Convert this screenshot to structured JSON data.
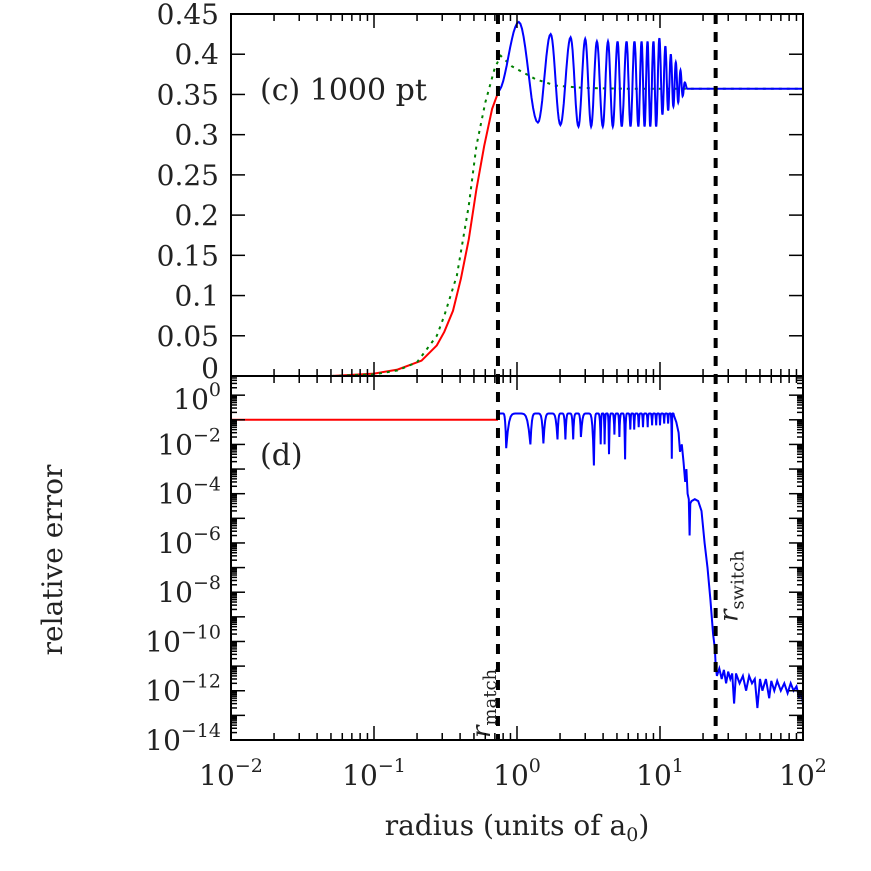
{
  "chart_data": [
    {
      "type": "line",
      "panel_label": "(c) 1000 pt",
      "xscale": "log",
      "xlim": [
        0.01,
        100
      ],
      "ylim": [
        0,
        0.45
      ],
      "yticks": [
        "0",
        "0.05",
        "0.1",
        "0.15",
        "0.2",
        "0.25",
        "0.3",
        "0.35",
        "0.4",
        "0.45"
      ],
      "grid": false,
      "series": [
        {
          "color": "#ff0000",
          "style": "solid",
          "points": [
            [
              0.01,
              0
            ],
            [
              0.05,
              0
            ],
            [
              0.1,
              0.003
            ],
            [
              0.146,
              0.008
            ],
            [
              0.215,
              0.019
            ],
            [
              0.275,
              0.038
            ],
            [
              0.31,
              0.055
            ],
            [
              0.357,
              0.081
            ],
            [
              0.405,
              0.121
            ],
            [
              0.46,
              0.17
            ],
            [
              0.52,
              0.232
            ],
            [
              0.59,
              0.286
            ],
            [
              0.67,
              0.332
            ],
            [
              0.736,
              0.352
            ]
          ]
        },
        {
          "color": "#008000",
          "style": "dotted",
          "points": [
            [
              0.05,
              0
            ],
            [
              0.1,
              0.002
            ],
            [
              0.146,
              0.007
            ],
            [
              0.2,
              0.017
            ],
            [
              0.275,
              0.05
            ],
            [
              0.31,
              0.075
            ],
            [
              0.38,
              0.125
            ],
            [
              0.46,
              0.212
            ],
            [
              0.52,
              0.286
            ],
            [
              0.6,
              0.34
            ],
            [
              0.7,
              0.383
            ],
            [
              0.77,
              0.398
            ],
            [
              0.92,
              0.385
            ],
            [
              1.35,
              0.369
            ],
            [
              1.86,
              0.361
            ],
            [
              3,
              0.358
            ],
            [
              6,
              0.357
            ],
            [
              100,
              0.357
            ]
          ]
        },
        {
          "color": "#0000ff",
          "style": "solid",
          "extrema": [
            [
              0.736,
              0.354
            ],
            [
              1.03,
              0.44
            ],
            [
              1.4,
              0.315
            ],
            [
              1.72,
              0.425
            ],
            [
              2.01,
              0.312
            ],
            [
              2.37,
              0.421
            ],
            [
              2.69,
              0.31
            ],
            [
              3.0,
              0.419
            ],
            [
              3.3,
              0.31
            ],
            [
              3.62,
              0.416
            ],
            [
              3.98,
              0.31
            ],
            [
              4.33,
              0.416
            ],
            [
              4.68,
              0.31
            ],
            [
              5.05,
              0.416
            ],
            [
              5.4,
              0.31
            ],
            [
              5.84,
              0.416
            ],
            [
              6.22,
              0.31
            ],
            [
              6.63,
              0.416
            ],
            [
              7.06,
              0.31
            ],
            [
              7.43,
              0.416
            ],
            [
              7.8,
              0.31
            ],
            [
              8.18,
              0.416
            ],
            [
              8.55,
              0.31
            ],
            [
              9.0,
              0.416
            ],
            [
              9.4,
              0.31
            ],
            [
              9.9,
              0.42
            ],
            [
              10.4,
              0.325
            ],
            [
              10.9,
              0.41
            ],
            [
              11.4,
              0.33
            ],
            [
              11.9,
              0.4
            ],
            [
              12.4,
              0.335
            ],
            [
              12.9,
              0.39
            ],
            [
              13.4,
              0.34
            ],
            [
              13.9,
              0.38
            ],
            [
              14.4,
              0.348
            ],
            [
              14.9,
              0.365
            ],
            [
              15.5,
              0.357
            ],
            [
              100,
              0.357
            ]
          ]
        }
      ]
    },
    {
      "type": "line",
      "panel_label": "(d)",
      "xscale": "log",
      "yscale": "log",
      "xlim": [
        0.01,
        100
      ],
      "ylim": [
        1e-14,
        6
      ],
      "xlabel": "radius (units of a",
      "xlabel_sub": "0",
      "xlabel_end": ")",
      "ylabel": "relative error",
      "xticks": [
        {
          "base": "10",
          "exp": "−2"
        },
        {
          "base": "10",
          "exp": "−1"
        },
        {
          "base": "10",
          "exp": "0"
        },
        {
          "base": "10",
          "exp": "1"
        },
        {
          "base": "10",
          "exp": "2"
        }
      ],
      "yticks": [
        {
          "base": "10",
          "exp": "0"
        },
        {
          "base": "10",
          "exp": "−2"
        },
        {
          "base": "10",
          "exp": "−4"
        },
        {
          "base": "10",
          "exp": "−6"
        },
        {
          "base": "10",
          "exp": "−8"
        },
        {
          "base": "10",
          "exp": "−10"
        },
        {
          "base": "10",
          "exp": "−12"
        },
        {
          "base": "10",
          "exp": "−14"
        }
      ],
      "series": [
        {
          "color": "#ff0000",
          "style": "solid",
          "points": [
            [
              0.01,
              0.1
            ],
            [
              0.736,
              0.1
            ]
          ]
        },
        {
          "color": "#0000ff",
          "style": "solid",
          "peak_level": 0.18,
          "dips": [
            [
              0.736,
              0.15
            ],
            [
              0.84,
              0.007
            ],
            [
              1.24,
              0.01
            ],
            [
              1.53,
              0.011
            ],
            [
              1.92,
              0.016
            ],
            [
              2.18,
              0.016
            ],
            [
              2.47,
              0.016
            ],
            [
              2.8,
              0.02
            ],
            [
              3.45,
              0.0014
            ],
            [
              3.85,
              0.01
            ],
            [
              4.1,
              0.01
            ],
            [
              4.4,
              0.004
            ],
            [
              4.8,
              0.025
            ],
            [
              5.2,
              0.02
            ],
            [
              5.7,
              0.0025
            ],
            [
              6.2,
              0.04
            ],
            [
              6.6,
              0.04
            ],
            [
              7.1,
              0.05
            ],
            [
              7.6,
              0.05
            ],
            [
              8.2,
              0.05
            ],
            [
              8.8,
              0.06
            ],
            [
              9.4,
              0.06
            ],
            [
              10,
              0.06
            ],
            [
              10.7,
              0.07
            ],
            [
              11.4,
              0.07
            ],
            [
              12.1,
              0.0026
            ],
            [
              12.5,
              0.15
            ]
          ],
          "tail": [
            [
              12.5,
              0.15
            ],
            [
              13,
              0.08
            ],
            [
              13.5,
              0.03
            ],
            [
              13.8,
              0.005
            ],
            [
              14.2,
              0.01
            ],
            [
              14.6,
              0.002
            ],
            [
              15,
              0.0003
            ],
            [
              15.3,
              0.001
            ],
            [
              15.6,
              0.0001
            ],
            [
              15.9,
              6e-05
            ],
            [
              16.1,
              2e-06
            ],
            [
              16.3,
              4e-05
            ],
            [
              16.6,
              5e-05
            ],
            [
              17.5,
              6e-05
            ],
            [
              18.5,
              5e-05
            ],
            [
              19.5,
              2e-05
            ],
            [
              20.5,
              1e-06
            ],
            [
              21.5,
              1e-07
            ],
            [
              22.5,
              5e-09
            ],
            [
              23.5,
              2e-10
            ],
            [
              24.2,
              5e-11
            ],
            [
              24.5,
              1e-11
            ],
            [
              25,
              4e-12
            ],
            [
              26,
              8e-12
            ],
            [
              27,
              3e-12
            ],
            [
              28,
              7e-12
            ],
            [
              29,
              2e-12
            ],
            [
              30,
              6e-12
            ],
            [
              31,
              3e-12
            ],
            [
              32,
              5e-12
            ],
            [
              33,
              3e-13
            ],
            [
              34,
              5e-12
            ],
            [
              36,
              2e-12
            ],
            [
              38,
              4e-12
            ],
            [
              40,
              1e-12
            ],
            [
              42,
              4e-12
            ],
            [
              44,
              2e-12
            ],
            [
              46,
              3e-12
            ],
            [
              48,
              2e-13
            ],
            [
              50,
              3e-12
            ],
            [
              52,
              1e-12
            ],
            [
              55,
              3e-12
            ],
            [
              58,
              5e-13
            ],
            [
              60,
              2.5e-12
            ],
            [
              63,
              1e-12
            ],
            [
              66,
              2.5e-12
            ],
            [
              70,
              1e-12
            ],
            [
              74,
              2e-12
            ],
            [
              78,
              8e-13
            ],
            [
              82,
              2e-12
            ],
            [
              86,
              1e-12
            ],
            [
              90,
              1.5e-12
            ],
            [
              94,
              5e-13
            ],
            [
              97,
              1e-12
            ],
            [
              100,
              3e-13
            ]
          ]
        }
      ]
    }
  ],
  "vlines": [
    {
      "x": 0.736,
      "label": "r",
      "label_sub": "match"
    },
    {
      "x": 24.5,
      "label": "r",
      "label_sub": "switch"
    }
  ]
}
